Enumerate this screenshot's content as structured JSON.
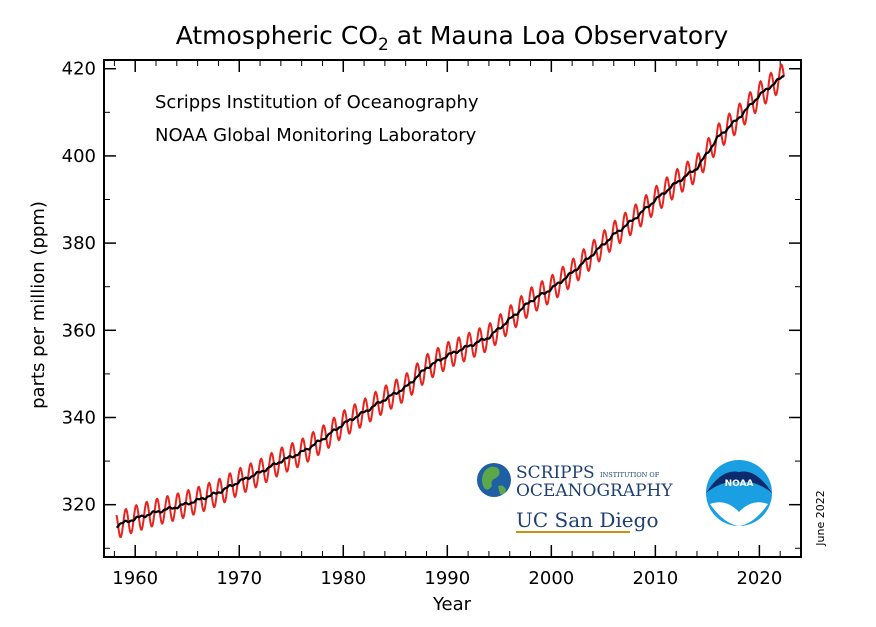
{
  "chart_data": {
    "type": "line",
    "title_main": "Atmospheric CO",
    "title_sub": "2",
    "title_rest": " at Mauna Loa Observatory",
    "annotations": [
      "Scripps Institution of Oceanography",
      "NOAA Global Monitoring Laboratory"
    ],
    "date_note": "June 2022",
    "xlabel": "Year",
    "ylabel": "parts per million (ppm)",
    "xlim": [
      1957,
      2024
    ],
    "ylim": [
      308,
      422
    ],
    "xticks": [
      1960,
      1970,
      1980,
      1990,
      2000,
      2010,
      2020
    ],
    "yticks": [
      320,
      340,
      360,
      380,
      400,
      420
    ],
    "grid": false,
    "series": [
      {
        "name": "monthly",
        "color": "#e8241f",
        "seasonal_amplitude_ppm": 3.0
      },
      {
        "name": "trend",
        "color": "#000000",
        "x": [
          1958.2,
          1960,
          1962,
          1964,
          1966,
          1968,
          1970,
          1972,
          1974,
          1976,
          1978,
          1980,
          1982,
          1984,
          1986,
          1988,
          1990,
          1992,
          1994,
          1996,
          1998,
          2000,
          2002,
          2004,
          2006,
          2008,
          2010,
          2012,
          2014,
          2016,
          2018,
          2020,
          2022.4
        ],
        "y": [
          315.2,
          316.8,
          318.3,
          319.5,
          321.0,
          322.8,
          325.3,
          327.4,
          330.0,
          332.0,
          335.0,
          338.5,
          341.2,
          344.2,
          346.9,
          351.4,
          354.2,
          356.3,
          358.4,
          362.5,
          366.7,
          369.5,
          373.2,
          377.5,
          381.9,
          385.6,
          389.9,
          393.8,
          397.2,
          404.2,
          408.7,
          413.9,
          418.5
        ]
      }
    ]
  },
  "logos": {
    "scripps_line1": "SCRIPPS",
    "scripps_line1_small": "INSTITUTION OF",
    "scripps_line2": "OCEANOGRAPHY",
    "ucsd": "UC San Diego",
    "noaa": "NOAA"
  }
}
